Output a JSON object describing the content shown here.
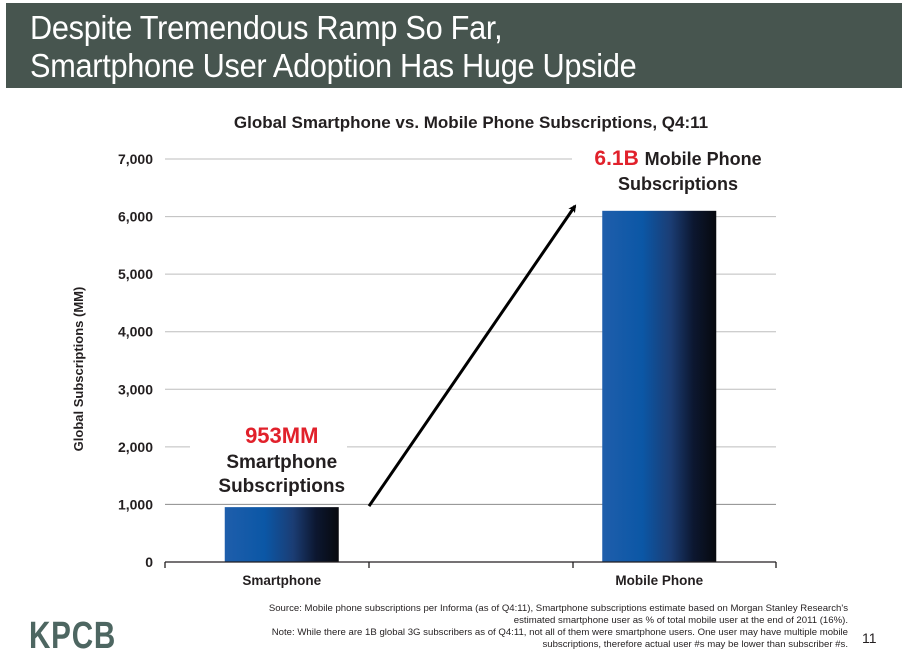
{
  "slide": {
    "title_lines": [
      "Despite Tremendous Ramp So Far,",
      "Smartphone User Adoption Has Huge Upside"
    ],
    "logo": "KPCB",
    "page_number": "11",
    "footnotes": {
      "source_line1": "Source: Mobile phone subscriptions per Informa (as of Q4:11), Smartphone subscriptions estimate based on Morgan Stanley Research's",
      "source_line2": "estimated smartphone user as % of total mobile user at the end of 2011 (16%).",
      "note_line1": "Note: While there are 1B global 3G subscribers as of Q4:11, not all of them were smartphone users. One user may have multiple mobile",
      "note_line2": "subscriptions, therefore actual user #s may be lower than subscriber #s."
    },
    "colors": {
      "header_band": "#47554f",
      "logo": "#4d6661",
      "highlight_red": "#e1212b",
      "bar_gradient": [
        "#1f5eab",
        "#0b57a6",
        "#1b3d74",
        "#0c1730",
        "#07090e"
      ]
    }
  },
  "chart_data": {
    "type": "bar",
    "title": "Global Smartphone vs. Mobile Phone Subscriptions, Q4:11",
    "xlabel": "",
    "ylabel": "Global Subscriptions (MM)",
    "categories": [
      "Smartphone",
      "Mobile Phone"
    ],
    "values": [
      953,
      6100
    ],
    "ylim": [
      0,
      7000
    ],
    "yticks": [
      0,
      1000,
      2000,
      3000,
      4000,
      5000,
      6000,
      7000
    ],
    "ytick_labels": [
      "0",
      "1,000",
      "2,000",
      "3,000",
      "4,000",
      "5,000",
      "6,000",
      "7,000"
    ],
    "grid": true,
    "legend": "none",
    "annotations": [
      {
        "category": "Smartphone",
        "value_text": "953MM",
        "lines": [
          "Smartphone",
          "Subscriptions"
        ]
      },
      {
        "category": "Mobile Phone",
        "value_text": "6.1B",
        "lines": [
          "Mobile Phone",
          "Subscriptions"
        ]
      }
    ],
    "arrow": {
      "from_category": "Smartphone",
      "to_category": "Mobile Phone",
      "direction": "up-right"
    }
  }
}
